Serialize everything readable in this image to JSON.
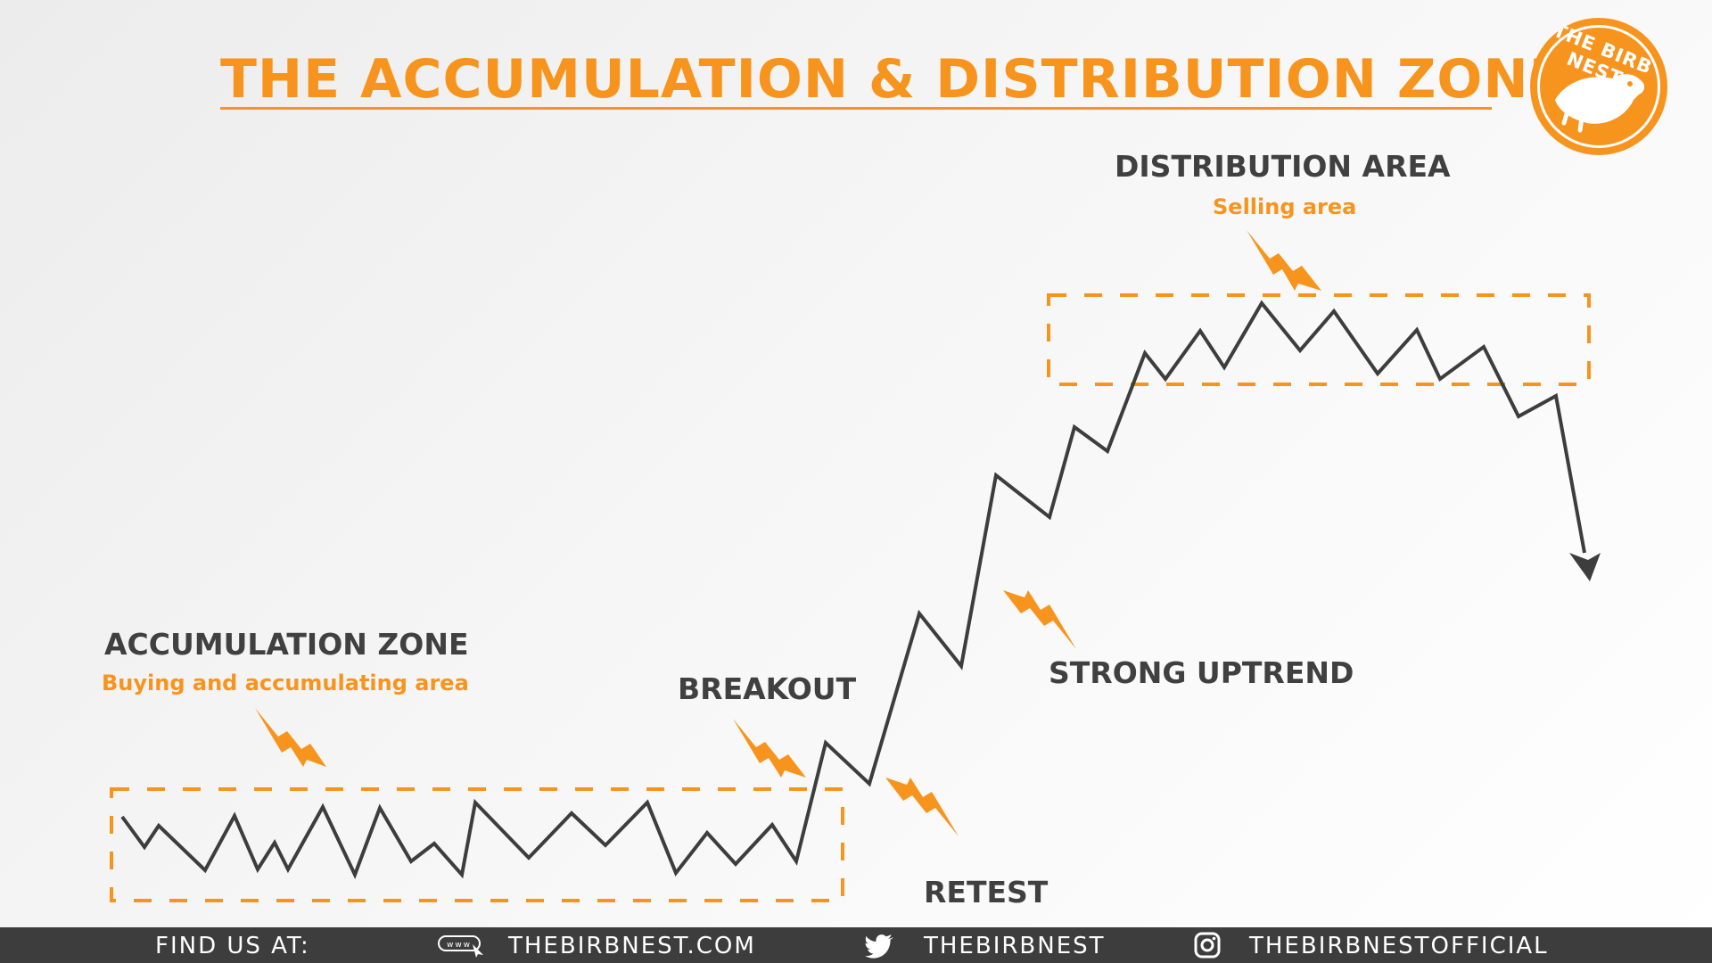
{
  "title": "THE ACCUMULATION & DISTRIBUTION ZONE",
  "logo": {
    "text": "THE BIRB NEST"
  },
  "labels": {
    "accumulation_title": "ACCUMULATION ZONE",
    "accumulation_sub": "Buying and accumulating area",
    "breakout": "BREAKOUT",
    "retest": "RETEST",
    "strong_uptrend": "STRONG UPTREND",
    "distribution_title": "DISTRIBUTION AREA",
    "distribution_sub": "Selling area"
  },
  "footer": {
    "find_us": "FIND US AT:",
    "website": "THEBIRBNEST.COM",
    "twitter": "THEBIRBNEST",
    "instagram": "THEBIRBNESTOFFICIAL"
  },
  "colors": {
    "accent": "#f7941d",
    "text_dark": "#404040",
    "line": "#3d3d3d",
    "footer_bg": "#3d3d3d"
  },
  "icons": [
    "website-icon",
    "twitter-icon",
    "instagram-icon",
    "lightning-arrow-icon",
    "down-arrow-icon",
    "bird-icon"
  ]
}
